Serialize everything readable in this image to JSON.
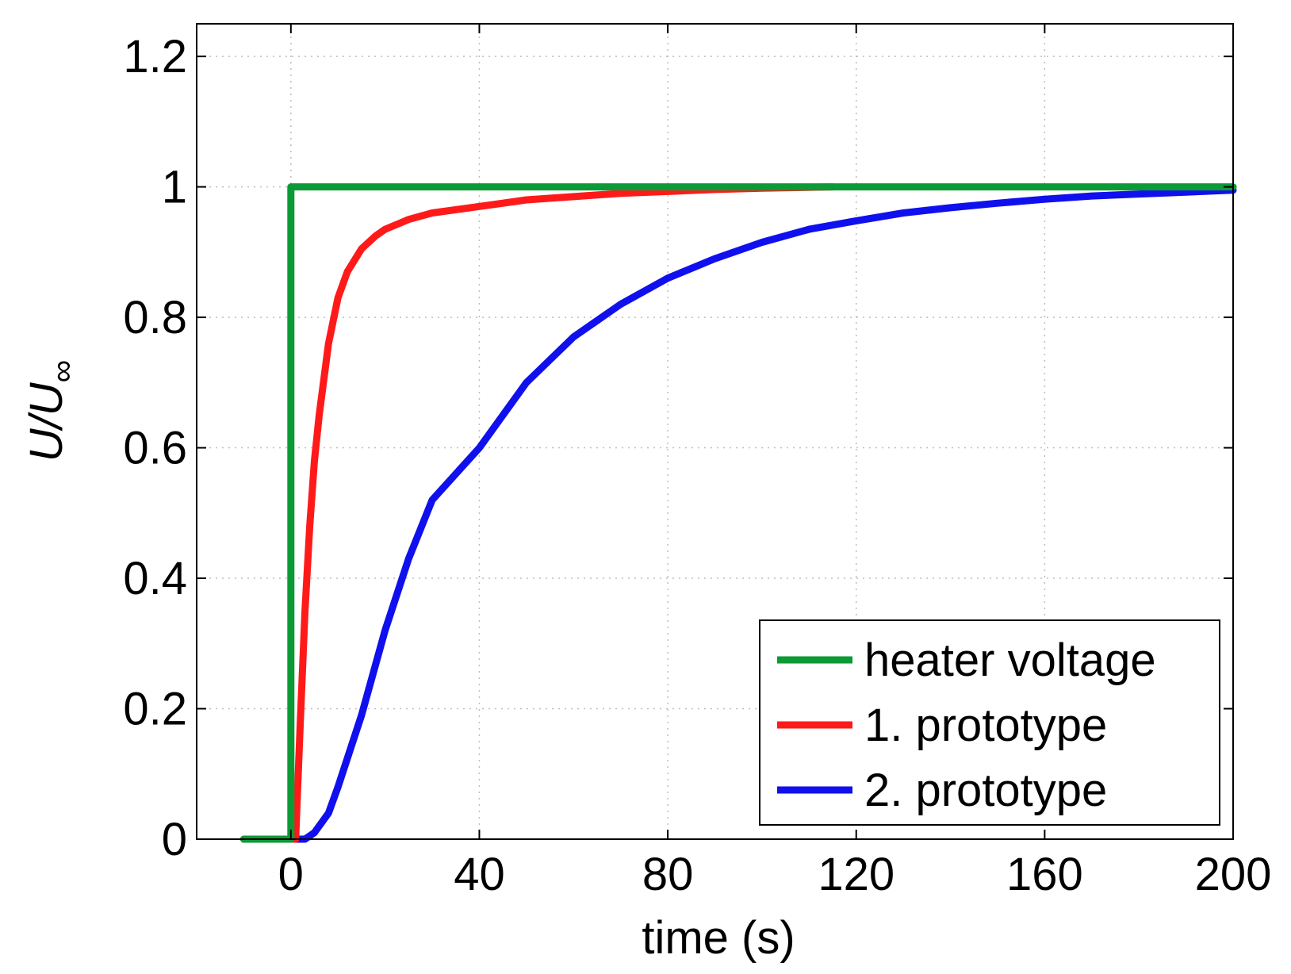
{
  "chart_data": {
    "type": "line",
    "title": "",
    "xlabel": "time (s)",
    "ylabel_main": "U/U",
    "ylabel_sub": "∞",
    "xlim": [
      -20,
      200
    ],
    "ylim": [
      0,
      1.25
    ],
    "xticks": [
      0,
      40,
      80,
      120,
      160,
      200
    ],
    "yticks": [
      0,
      0.2,
      0.4,
      0.6,
      0.8,
      1,
      1.2
    ],
    "xtick_labels": [
      "0",
      "40",
      "80",
      "120",
      "160",
      "200"
    ],
    "ytick_labels": [
      "0",
      "0.2",
      "0.4",
      "0.6",
      "0.8",
      "1",
      "1.2"
    ],
    "grid": true,
    "legend_position": "bottom-right",
    "series": [
      {
        "name": "heater voltage",
        "color": "#0b9a35",
        "x": [
          -10,
          0,
          0,
          10,
          40,
          80,
          120,
          160,
          200
        ],
        "y": [
          0,
          0,
          1,
          1,
          1,
          1,
          1,
          1,
          1
        ]
      },
      {
        "name": "1. prototype",
        "color": "#ff1a1a",
        "x": [
          -10,
          0,
          1,
          2,
          3,
          4,
          5,
          6,
          8,
          10,
          12,
          15,
          18,
          20,
          25,
          30,
          40,
          50,
          60,
          70,
          80,
          90,
          100,
          115
        ],
        "y": [
          0,
          0,
          0,
          0.18,
          0.35,
          0.48,
          0.58,
          0.65,
          0.76,
          0.83,
          0.87,
          0.905,
          0.925,
          0.935,
          0.95,
          0.96,
          0.97,
          0.98,
          0.985,
          0.99,
          0.993,
          0.996,
          0.998,
          1
        ]
      },
      {
        "name": "2. prototype",
        "color": "#1010ee",
        "x": [
          -10,
          0,
          3,
          5,
          8,
          10,
          15,
          20,
          25,
          30,
          40,
          50,
          60,
          70,
          80,
          90,
          100,
          110,
          120,
          130,
          140,
          150,
          160,
          170,
          180,
          190,
          200
        ],
        "y": [
          0,
          0,
          0,
          0.01,
          0.04,
          0.08,
          0.19,
          0.32,
          0.43,
          0.52,
          0.6,
          0.7,
          0.77,
          0.82,
          0.86,
          0.89,
          0.915,
          0.935,
          0.948,
          0.96,
          0.968,
          0.975,
          0.981,
          0.986,
          0.989,
          0.992,
          0.995
        ]
      }
    ]
  }
}
